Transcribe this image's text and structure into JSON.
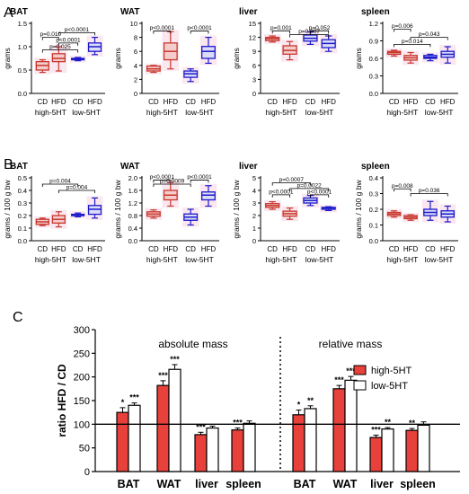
{
  "figure": {
    "panel_labels": [
      "A",
      "B",
      "C"
    ],
    "colors": {
      "high": "#c8372d",
      "low": "#1a1acc",
      "highFill": "#f4cccc",
      "lowFill": "#dcdcf6",
      "shade": "#f6d4e4",
      "bar": "#e8403a"
    }
  },
  "chart_data": [
    {
      "type": "box",
      "panel": "A",
      "title": "BAT",
      "ylabel": "grams",
      "ylim": [
        0,
        1.5
      ],
      "yticks": [
        "0.0",
        "0.5",
        "1.0",
        "1.5"
      ],
      "categories": [
        "CD",
        "HFD",
        "CD",
        "HFD"
      ],
      "groups": [
        "high-5HT",
        "low-5HT"
      ],
      "boxes": [
        {
          "group": "high-5HT",
          "diet": "CD",
          "min": 0.45,
          "q1": 0.5,
          "median": 0.6,
          "q3": 0.68,
          "max": 0.72
        },
        {
          "group": "high-5HT",
          "diet": "HFD",
          "min": 0.48,
          "q1": 0.68,
          "median": 0.75,
          "q3": 0.85,
          "max": 1.0
        },
        {
          "group": "low-5HT",
          "diet": "CD",
          "min": 0.7,
          "q1": 0.72,
          "median": 0.73,
          "q3": 0.75,
          "max": 0.77
        },
        {
          "group": "low-5HT",
          "diet": "HFD",
          "min": 0.83,
          "q1": 0.9,
          "median": 1.0,
          "q3": 1.08,
          "max": 1.2
        }
      ],
      "brackets": [
        {
          "from": 0,
          "to": 1,
          "level": 1.2,
          "label": "p=0.010"
        },
        {
          "from": 1,
          "to": 3,
          "level": 1.3,
          "label": "p<0.0001"
        },
        {
          "from": 0,
          "to": 2,
          "level": 0.93,
          "label": "p=0.025"
        },
        {
          "from": 1,
          "to": 2,
          "level": 1.08,
          "label": "p<0.0001"
        }
      ]
    },
    {
      "type": "box",
      "panel": "A",
      "title": "WAT",
      "ylabel": "grams",
      "ylim": [
        0,
        10
      ],
      "yticks": [
        "0",
        "2",
        "4",
        "6",
        "8",
        "10"
      ],
      "categories": [
        "CD",
        "HFD",
        "CD",
        "HFD"
      ],
      "groups": [
        "high-5HT",
        "low-5HT"
      ],
      "boxes": [
        {
          "group": "high-5HT",
          "diet": "CD",
          "min": 3.0,
          "q1": 3.2,
          "median": 3.5,
          "q3": 3.9,
          "max": 4.0
        },
        {
          "group": "high-5HT",
          "diet": "HFD",
          "min": 3.5,
          "q1": 4.8,
          "median": 6.0,
          "q3": 7.2,
          "max": 8.8
        },
        {
          "group": "low-5HT",
          "diet": "CD",
          "min": 1.7,
          "q1": 2.3,
          "median": 2.8,
          "q3": 3.2,
          "max": 3.5
        },
        {
          "group": "low-5HT",
          "diet": "HFD",
          "min": 4.3,
          "q1": 5.0,
          "median": 6.0,
          "q3": 6.7,
          "max": 8.0
        }
      ],
      "brackets": [
        {
          "from": 0,
          "to": 1,
          "level": 8.9,
          "label": "p<0.0001"
        },
        {
          "from": 2,
          "to": 3,
          "level": 8.9,
          "label": "p<0.0001"
        }
      ]
    },
    {
      "type": "box",
      "panel": "A",
      "title": "liver",
      "ylabel": "grams",
      "ylim": [
        0,
        15
      ],
      "yticks": [
        "0",
        "3",
        "6",
        "9",
        "12",
        "15"
      ],
      "categories": [
        "CD",
        "HFD",
        "CD",
        "HFD"
      ],
      "groups": [
        "high-5HT",
        "low-5HT"
      ],
      "boxes": [
        {
          "group": "high-5HT",
          "diet": "CD",
          "min": 11.0,
          "q1": 11.3,
          "median": 11.7,
          "q3": 12.0,
          "max": 12.3
        },
        {
          "group": "high-5HT",
          "diet": "HFD",
          "min": 7.2,
          "q1": 8.4,
          "median": 9.2,
          "q3": 10.2,
          "max": 11.1
        },
        {
          "group": "low-5HT",
          "diet": "CD",
          "min": 10.5,
          "q1": 11.2,
          "median": 11.8,
          "q3": 12.5,
          "max": 13.2
        },
        {
          "group": "low-5HT",
          "diet": "HFD",
          "min": 9.0,
          "q1": 9.8,
          "median": 10.7,
          "q3": 11.5,
          "max": 12.3
        }
      ],
      "brackets": [
        {
          "from": 0,
          "to": 1,
          "level": 13.4,
          "label": "p=0.001"
        },
        {
          "from": 2,
          "to": 3,
          "level": 13.4,
          "label": "p=0.052"
        },
        {
          "from": 1,
          "to": 3,
          "level": 12.6,
          "label": "p=0.007"
        }
      ]
    },
    {
      "type": "box",
      "panel": "A",
      "title": "spleen",
      "ylabel": "grams",
      "ylim": [
        0,
        1.2
      ],
      "yticks": [
        "0.0",
        "0.3",
        "0.6",
        "0.9",
        "1.2"
      ],
      "categories": [
        "CD",
        "HFD",
        "CD",
        "HFD"
      ],
      "groups": [
        "high-5HT",
        "low-5HT"
      ],
      "boxes": [
        {
          "group": "high-5HT",
          "diet": "CD",
          "min": 0.64,
          "q1": 0.67,
          "median": 0.7,
          "q3": 0.72,
          "max": 0.74
        },
        {
          "group": "high-5HT",
          "diet": "HFD",
          "min": 0.52,
          "q1": 0.57,
          "median": 0.61,
          "q3": 0.65,
          "max": 0.7
        },
        {
          "group": "low-5HT",
          "diet": "CD",
          "min": 0.56,
          "q1": 0.6,
          "median": 0.62,
          "q3": 0.65,
          "max": 0.67
        },
        {
          "group": "low-5HT",
          "diet": "HFD",
          "min": 0.52,
          "q1": 0.62,
          "median": 0.67,
          "q3": 0.72,
          "max": 0.8
        }
      ],
      "brackets": [
        {
          "from": 0,
          "to": 1,
          "level": 1.1,
          "label": "p=0.006"
        },
        {
          "from": 0,
          "to": 2,
          "level": 0.84,
          "label": "p=0.014"
        },
        {
          "from": 1,
          "to": 3,
          "level": 0.96,
          "label": "p=0.043"
        }
      ]
    },
    {
      "type": "box",
      "panel": "B",
      "title": "BAT",
      "ylabel": "grams / 100 g bw",
      "ylim": [
        0,
        0.5
      ],
      "yticks": [
        "0.0",
        "0.1",
        "0.2",
        "0.3",
        "0.4",
        "0.5"
      ],
      "categories": [
        "CD",
        "HFD",
        "CD",
        "HFD"
      ],
      "groups": [
        "high-5HT",
        "low-5HT"
      ],
      "boxes": [
        {
          "group": "high-5HT",
          "diet": "CD",
          "min": 0.12,
          "q1": 0.13,
          "median": 0.15,
          "q3": 0.17,
          "max": 0.18
        },
        {
          "group": "high-5HT",
          "diet": "HFD",
          "min": 0.11,
          "q1": 0.14,
          "median": 0.17,
          "q3": 0.2,
          "max": 0.23
        },
        {
          "group": "low-5HT",
          "diet": "CD",
          "min": 0.19,
          "q1": 0.2,
          "median": 0.2,
          "q3": 0.21,
          "max": 0.22
        },
        {
          "group": "low-5HT",
          "diet": "HFD",
          "min": 0.18,
          "q1": 0.21,
          "median": 0.25,
          "q3": 0.28,
          "max": 0.34
        }
      ],
      "brackets": [
        {
          "from": 0,
          "to": 2,
          "level": 0.45,
          "label": "p=0.004"
        },
        {
          "from": 1,
          "to": 3,
          "level": 0.4,
          "label": "p=0.004"
        }
      ]
    },
    {
      "type": "box",
      "panel": "B",
      "title": "WAT",
      "ylabel": "grams / 100 g bw",
      "ylim": [
        0,
        2.0
      ],
      "yticks": [
        "0.0",
        "0.4",
        "0.8",
        "1.2",
        "1.6",
        "2.0"
      ],
      "categories": [
        "CD",
        "HFD",
        "CD",
        "HFD"
      ],
      "groups": [
        "high-5HT",
        "low-5HT"
      ],
      "boxes": [
        {
          "group": "high-5HT",
          "diet": "CD",
          "min": 0.72,
          "q1": 0.78,
          "median": 0.85,
          "q3": 0.92,
          "max": 0.98
        },
        {
          "group": "high-5HT",
          "diet": "HFD",
          "min": 1.1,
          "q1": 1.3,
          "median": 1.45,
          "q3": 1.6,
          "max": 1.85
        },
        {
          "group": "low-5HT",
          "diet": "CD",
          "min": 0.5,
          "q1": 0.65,
          "median": 0.75,
          "q3": 0.85,
          "max": 1.0
        },
        {
          "group": "low-5HT",
          "diet": "HFD",
          "min": 1.1,
          "q1": 1.3,
          "median": 1.45,
          "q3": 1.55,
          "max": 1.75
        }
      ],
      "brackets": [
        {
          "from": 0,
          "to": 1,
          "level": 1.93,
          "label": "p<0.0001"
        },
        {
          "from": 2,
          "to": 3,
          "level": 1.93,
          "label": "p<0.0001"
        },
        {
          "from": 0,
          "to": 2,
          "level": 1.8,
          "label": "p=0.0009"
        }
      ]
    },
    {
      "type": "box",
      "panel": "B",
      "title": "liver",
      "ylabel": "grams / 100 g bw",
      "ylim": [
        0,
        5
      ],
      "yticks": [
        "0",
        "1",
        "2",
        "3",
        "4",
        "5"
      ],
      "categories": [
        "CD",
        "HFD",
        "CD",
        "HFD"
      ],
      "groups": [
        "high-5HT",
        "low-5HT"
      ],
      "boxes": [
        {
          "group": "high-5HT",
          "diet": "CD",
          "min": 2.5,
          "q1": 2.65,
          "median": 2.8,
          "q3": 2.95,
          "max": 3.1
        },
        {
          "group": "high-5HT",
          "diet": "HFD",
          "min": 1.7,
          "q1": 1.95,
          "median": 2.15,
          "q3": 2.35,
          "max": 2.6
        },
        {
          "group": "low-5HT",
          "diet": "CD",
          "min": 2.8,
          "q1": 3.0,
          "median": 3.2,
          "q3": 3.4,
          "max": 3.6
        },
        {
          "group": "low-5HT",
          "diet": "HFD",
          "min": 2.4,
          "q1": 2.5,
          "median": 2.6,
          "q3": 2.65,
          "max": 2.7
        }
      ],
      "brackets": [
        {
          "from": 0,
          "to": 2,
          "level": 4.6,
          "label": "p=0.0007"
        },
        {
          "from": 1,
          "to": 3,
          "level": 4.15,
          "label": "p=0.0022"
        },
        {
          "from": 0,
          "to": 1,
          "level": 3.65,
          "label": "p<0.0001"
        },
        {
          "from": 2,
          "to": 3,
          "level": 3.65,
          "label": "p<0.0001"
        }
      ]
    },
    {
      "type": "box",
      "panel": "B",
      "title": "spleen",
      "ylabel": "grams / 100 g bw",
      "ylim": [
        0,
        0.4
      ],
      "yticks": [
        "0.0",
        "0.1",
        "0.2",
        "0.3",
        "0.4"
      ],
      "categories": [
        "CD",
        "HFD",
        "CD",
        "HFD"
      ],
      "groups": [
        "high-5HT",
        "low-5HT"
      ],
      "boxes": [
        {
          "group": "high-5HT",
          "diet": "CD",
          "min": 0.15,
          "q1": 0.16,
          "median": 0.17,
          "q3": 0.18,
          "max": 0.19
        },
        {
          "group": "high-5HT",
          "diet": "HFD",
          "min": 0.13,
          "q1": 0.14,
          "median": 0.15,
          "q3": 0.16,
          "max": 0.165
        },
        {
          "group": "low-5HT",
          "diet": "CD",
          "min": 0.13,
          "q1": 0.16,
          "median": 0.18,
          "q3": 0.2,
          "max": 0.25
        },
        {
          "group": "low-5HT",
          "diet": "HFD",
          "min": 0.12,
          "q1": 0.15,
          "median": 0.17,
          "q3": 0.19,
          "max": 0.22
        }
      ],
      "brackets": [
        {
          "from": 0,
          "to": 1,
          "level": 0.33,
          "label": "p=0.008"
        },
        {
          "from": 1,
          "to": 3,
          "level": 0.3,
          "label": "p=0.036"
        }
      ]
    },
    {
      "type": "bar",
      "panel": "C",
      "ylabel": "ratio HFD / CD",
      "ylim": [
        0,
        300
      ],
      "yticks": [
        "0",
        "50",
        "100",
        "150",
        "200",
        "250",
        "300"
      ],
      "reference_line": 100,
      "section_titles": [
        "absolute mass",
        "relative mass"
      ],
      "categories": [
        "BAT",
        "WAT",
        "liver",
        "spleen",
        "BAT",
        "WAT",
        "liver",
        "spleen"
      ],
      "legend_position": "top-right",
      "series": [
        {
          "name": "high-5HT",
          "values": [
            125,
            182,
            78,
            88,
            120,
            175,
            72,
            87
          ],
          "errors": [
            10,
            10,
            5,
            4,
            10,
            7,
            5,
            4
          ],
          "stars": [
            "*",
            "***",
            "***",
            "***",
            "*",
            "***",
            "***",
            "**"
          ]
        },
        {
          "name": "low-5HT",
          "values": [
            140,
            216,
            92,
            102,
            133,
            193,
            90,
            98
          ],
          "errors": [
            5,
            10,
            4,
            5,
            6,
            8,
            3,
            7
          ],
          "stars": [
            "***",
            "***",
            "",
            "",
            "**",
            "***",
            "**",
            ""
          ]
        }
      ]
    }
  ]
}
